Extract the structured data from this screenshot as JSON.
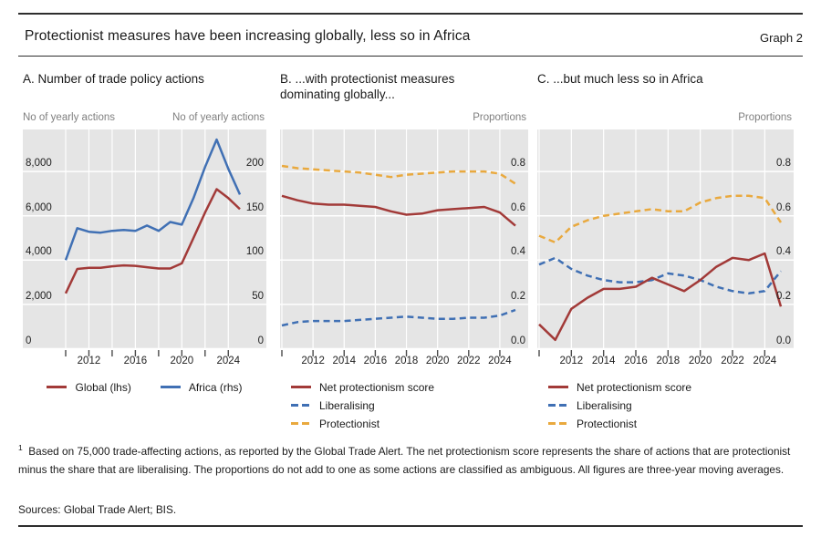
{
  "header": {
    "title": "Protectionist measures have been increasing globally, less so in Africa",
    "graph_label": "Graph 2"
  },
  "colors": {
    "red": "#a23a38",
    "blue": "#4070b4",
    "orange": "#e9a93e",
    "plot_background": "#e5e5e5",
    "gridline": "#ffffff"
  },
  "chart_data": [
    {
      "type": "line",
      "panel": "A",
      "title": "A. Number of trade policy actions",
      "grid": true,
      "legend_position": "bottom-horizontal",
      "x": [
        2010,
        2011,
        2012,
        2013,
        2014,
        2015,
        2016,
        2017,
        2018,
        2019,
        2020,
        2021,
        2022,
        2023,
        2024,
        2025
      ],
      "x_tick_labels": [
        "2012",
        "2016",
        "2020",
        "2024"
      ],
      "left_axis": {
        "label": "No of yearly actions",
        "ticks": [
          0,
          2000,
          4000,
          6000,
          8000
        ],
        "tick_labels": [
          "0",
          "2,000",
          "4,000",
          "6,000",
          "8,000"
        ],
        "range": [
          0,
          10000
        ]
      },
      "right_axis": {
        "label": "No of yearly actions",
        "ticks": [
          0,
          50,
          100,
          150,
          200
        ],
        "tick_labels": [
          "0",
          "50",
          "100",
          "150",
          "200"
        ],
        "range": [
          0,
          250
        ]
      },
      "series": [
        {
          "name": "Global (lhs)",
          "axis": "left",
          "style": "solid",
          "color": "#a23a38",
          "values": [
            2500,
            3600,
            3650,
            3650,
            3720,
            3760,
            3740,
            3680,
            3620,
            3620,
            3850,
            5000,
            6150,
            7200,
            6800,
            6300
          ]
        },
        {
          "name": "Africa (rhs)",
          "axis": "right",
          "style": "solid",
          "color": "#4070b4",
          "values": [
            100,
            136,
            132,
            131,
            133,
            134,
            133,
            139,
            133,
            143,
            140,
            170,
            205,
            236,
            203,
            174
          ]
        }
      ]
    },
    {
      "type": "line",
      "panel": "B",
      "title": "B. ...with protectionist measures dominating globally...",
      "grid": true,
      "legend_position": "bottom-vertical",
      "x": [
        2010,
        2011,
        2012,
        2013,
        2014,
        2015,
        2016,
        2017,
        2018,
        2019,
        2020,
        2021,
        2022,
        2023,
        2024,
        2025
      ],
      "x_tick_labels": [
        "2012",
        "2014",
        "2016",
        "2018",
        "2020",
        "2022",
        "2024"
      ],
      "right_axis": {
        "label": "Proportions",
        "ticks": [
          0,
          0.2,
          0.4,
          0.6,
          0.8
        ],
        "tick_labels": [
          "0.0",
          "0.2",
          "0.4",
          "0.6",
          "0.8"
        ],
        "range": [
          0,
          1.0
        ]
      },
      "series": [
        {
          "name": "Net protectionism score",
          "axis": "right",
          "style": "solid",
          "color": "#a23a38",
          "values": [
            0.69,
            0.67,
            0.655,
            0.65,
            0.65,
            0.645,
            0.64,
            0.62,
            0.605,
            0.61,
            0.625,
            0.63,
            0.635,
            0.64,
            0.615,
            0.555
          ]
        },
        {
          "name": "Liberalising",
          "axis": "right",
          "style": "dashed",
          "color": "#4070b4",
          "values": [
            0.105,
            0.12,
            0.125,
            0.125,
            0.125,
            0.13,
            0.135,
            0.14,
            0.145,
            0.14,
            0.135,
            0.135,
            0.14,
            0.14,
            0.15,
            0.175
          ]
        },
        {
          "name": "Protectionist",
          "axis": "right",
          "style": "dashed",
          "color": "#e9a93e",
          "values": [
            0.825,
            0.815,
            0.81,
            0.805,
            0.8,
            0.795,
            0.785,
            0.775,
            0.785,
            0.79,
            0.795,
            0.8,
            0.8,
            0.8,
            0.79,
            0.745
          ]
        }
      ]
    },
    {
      "type": "line",
      "panel": "C",
      "title": "C. ...but much less so in Africa",
      "grid": true,
      "legend_position": "bottom-vertical",
      "x": [
        2010,
        2011,
        2012,
        2013,
        2014,
        2015,
        2016,
        2017,
        2018,
        2019,
        2020,
        2021,
        2022,
        2023,
        2024,
        2025
      ],
      "x_tick_labels": [
        "2012",
        "2014",
        "2016",
        "2018",
        "2020",
        "2022",
        "2024"
      ],
      "right_axis": {
        "label": "Proportions",
        "ticks": [
          0,
          0.2,
          0.4,
          0.6,
          0.8
        ],
        "tick_labels": [
          "0.0",
          "0.2",
          "0.4",
          "0.6",
          "0.8"
        ],
        "range": [
          0,
          1.0
        ]
      },
      "series": [
        {
          "name": "Net protectionism score",
          "axis": "right",
          "style": "solid",
          "color": "#a23a38",
          "values": [
            0.11,
            0.04,
            0.18,
            0.23,
            0.27,
            0.27,
            0.28,
            0.32,
            0.29,
            0.26,
            0.31,
            0.37,
            0.41,
            0.4,
            0.43,
            0.19
          ]
        },
        {
          "name": "Liberalising",
          "axis": "right",
          "style": "dashed",
          "color": "#4070b4",
          "values": [
            0.38,
            0.41,
            0.36,
            0.33,
            0.31,
            0.3,
            0.3,
            0.31,
            0.34,
            0.33,
            0.31,
            0.28,
            0.26,
            0.25,
            0.26,
            0.35
          ]
        },
        {
          "name": "Protectionist",
          "axis": "right",
          "style": "dashed",
          "color": "#e9a93e",
          "values": [
            0.51,
            0.48,
            0.55,
            0.58,
            0.6,
            0.61,
            0.62,
            0.63,
            0.62,
            0.62,
            0.66,
            0.68,
            0.69,
            0.69,
            0.68,
            0.57
          ]
        }
      ]
    }
  ],
  "footnote": {
    "marker": "1",
    "text": "Based on 75,000 trade-affecting actions, as reported by the Global Trade Alert. The net protectionism score represents the share of actions that are protectionist minus the share that are liberalising. The proportions do not add to one as some actions are classified as ambiguous. All figures are three-year moving averages."
  },
  "sources": "Sources: Global Trade Alert; BIS."
}
